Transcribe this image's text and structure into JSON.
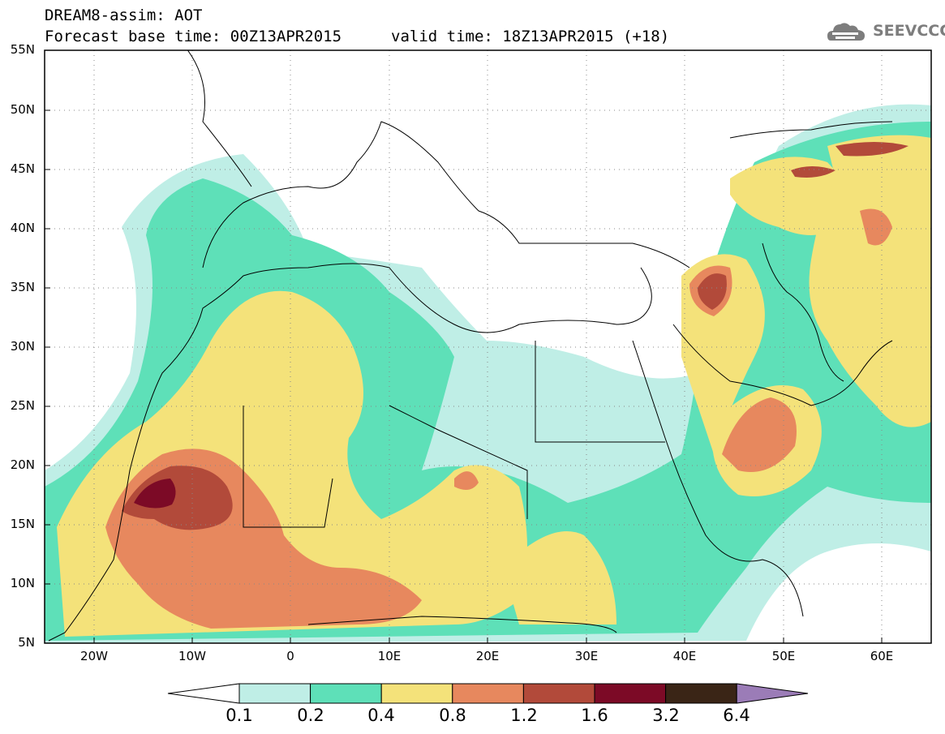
{
  "header": {
    "title": "DREAM8-assim: AOT",
    "base_time": "Forecast base time: 00Z13APR2015",
    "valid_time": "valid time: 18Z13APR2015 (+18)"
  },
  "logo": {
    "text": "SEEVCCC",
    "icon": "cloud-icon"
  },
  "map": {
    "variable": "AOT",
    "region": {
      "lon_range": [
        -25,
        65
      ],
      "lat_range": [
        5,
        55
      ]
    },
    "lat_labels": [
      "55N",
      "50N",
      "45N",
      "40N",
      "35N",
      "30N",
      "25N",
      "20N",
      "15N",
      "10N",
      "5N"
    ],
    "lon_labels": [
      "20W",
      "10W",
      "0",
      "10E",
      "20E",
      "30E",
      "40E",
      "50E",
      "60E"
    ],
    "grid": "dotted"
  },
  "colorbar": {
    "labels": [
      "0.1",
      "0.2",
      "0.4",
      "0.8",
      "1.2",
      "1.6",
      "3.2",
      "6.4"
    ],
    "colors": [
      "#ffffff",
      "#bfeee6",
      "#5ee0b8",
      "#f4e27a",
      "#e7885e",
      "#b24a3a",
      "#7c0a26",
      "#3a2516",
      "#9b7cb7"
    ]
  }
}
